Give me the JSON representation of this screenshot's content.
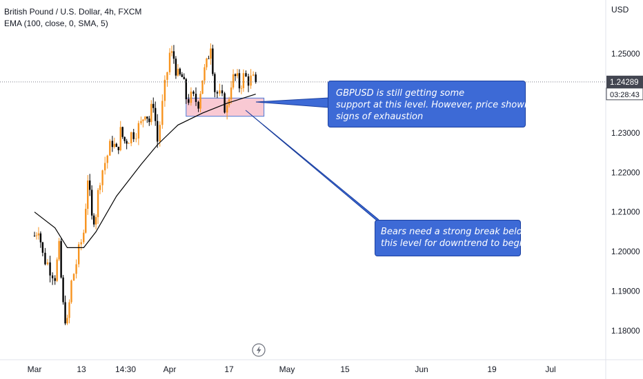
{
  "header": {
    "symbol_title": "British Pound / U.S. Dollar, 4h, FXCM",
    "indicator": "EMA (100, close, 0, SMA, 5)"
  },
  "price_axis": {
    "currency": "USD",
    "ticks": [
      "1.25000",
      "1.24000",
      "1.23000",
      "1.22000",
      "1.21000",
      "1.20000",
      "1.19000",
      "1.18000"
    ],
    "last_price": "1.24289",
    "countdown": "03:28:43"
  },
  "time_axis": {
    "labels": [
      "Mar",
      "13",
      "14:30",
      "Apr",
      "17",
      "May",
      "15",
      "Jun",
      "19",
      "Jul"
    ]
  },
  "annotations": {
    "callout_1": [
      "GBPUSD is still getting some",
      "support at this level. However, price showing",
      "signs of exhaustion"
    ],
    "callout_2": [
      "Bears need a strong break below",
      "this level for downtrend to begin"
    ]
  },
  "colors": {
    "up_candle": "#f7931e",
    "down_candle": "#000000",
    "ema_line": "#000000",
    "zone_fill": "#f9c9d3",
    "zone_border": "#4a78d4",
    "callout_fill": "#3d6ad6",
    "price_tag": "#434651"
  },
  "chart_data": {
    "type": "candlestick",
    "ylim": [
      1.175,
      1.26
    ],
    "support_zone": [
      1.2342,
      1.2388
    ],
    "ema_period": 100,
    "close_path": [
      {
        "x": "Mar 1",
        "y": 1.204
      },
      {
        "x": "Mar 2",
        "y": 1.2065
      },
      {
        "x": "Mar 3",
        "y": 1.199
      },
      {
        "x": "Mar 6",
        "y": 1.194
      },
      {
        "x": "Mar 7",
        "y": 1.2005
      },
      {
        "x": "Mar 8",
        "y": 1.186
      },
      {
        "x": "Mar 9",
        "y": 1.1815
      },
      {
        "x": "Mar 10",
        "y": 1.192
      },
      {
        "x": "Mar 13",
        "y": 1.205
      },
      {
        "x": "Mar 14",
        "y": 1.219
      },
      {
        "x": "Mar 15",
        "y": 1.208
      },
      {
        "x": "Mar 16",
        "y": 1.21
      },
      {
        "x": "Mar 17",
        "y": 1.219
      },
      {
        "x": "Mar 20",
        "y": 1.228
      },
      {
        "x": "Mar 21",
        "y": 1.225
      },
      {
        "x": "Mar 22",
        "y": 1.23
      },
      {
        "x": "Mar 23",
        "y": 1.228
      },
      {
        "x": "Mar 24",
        "y": 1.229
      },
      {
        "x": "Mar 27",
        "y": 1.232
      },
      {
        "x": "Mar 28",
        "y": 1.236
      },
      {
        "x": "Mar 29",
        "y": 1.233
      },
      {
        "x": "Mar 30",
        "y": 1.238
      },
      {
        "x": "Mar 31",
        "y": 1.228
      },
      {
        "x": "Apr 3",
        "y": 1.25
      },
      {
        "x": "Apr 4",
        "y": 1.249
      },
      {
        "x": "Apr 5",
        "y": 1.244
      },
      {
        "x": "Apr 6",
        "y": 1.244
      },
      {
        "x": "Apr 7",
        "y": 1.239
      },
      {
        "x": "Apr 10",
        "y": 1.238
      },
      {
        "x": "Apr 11",
        "y": 1.244
      },
      {
        "x": "Apr 12",
        "y": 1.247
      },
      {
        "x": "Apr 13",
        "y": 1.253
      },
      {
        "x": "Apr 14",
        "y": 1.241
      },
      {
        "x": "Apr 17",
        "y": 1.236
      },
      {
        "x": "Apr 18",
        "y": 1.243
      },
      {
        "x": "Apr 19",
        "y": 1.244
      },
      {
        "x": "Apr 20",
        "y": 1.242
      },
      {
        "x": "Apr 21",
        "y": 1.244
      },
      {
        "x": "Apr 24",
        "y": 1.2429
      }
    ],
    "ema_path": [
      {
        "x": "Mar 1",
        "y": 1.21
      },
      {
        "x": "Mar 6",
        "y": 1.206
      },
      {
        "x": "Mar 9",
        "y": 1.201
      },
      {
        "x": "Mar 13",
        "y": 1.201
      },
      {
        "x": "Mar 16",
        "y": 1.205
      },
      {
        "x": "Mar 21",
        "y": 1.214
      },
      {
        "x": "Mar 27",
        "y": 1.222
      },
      {
        "x": "Mar 31",
        "y": 1.227
      },
      {
        "x": "Apr 5",
        "y": 1.232
      },
      {
        "x": "Apr 11",
        "y": 1.235
      },
      {
        "x": "Apr 17",
        "y": 1.2375
      },
      {
        "x": "Apr 24",
        "y": 1.2398
      }
    ]
  }
}
